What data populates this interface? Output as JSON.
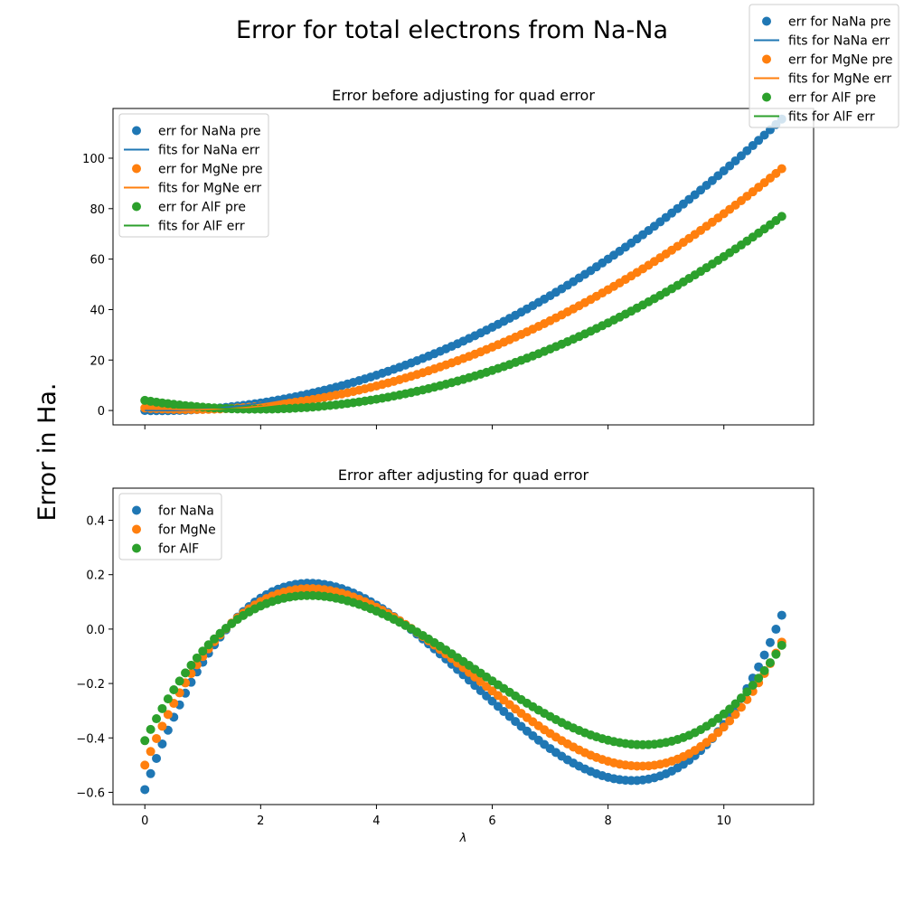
{
  "figure": {
    "suptitle": "Error for total electrons from Na-Na",
    "ylabel": "Error in Ha.",
    "xlabel": "λ",
    "figure_legend": [
      {
        "label": "err for NaNa pre",
        "kind": "marker",
        "color": "#1f77b4"
      },
      {
        "label": "fits for NaNa err",
        "kind": "line",
        "color": "#1f77b4"
      },
      {
        "label": "err for MgNe pre",
        "kind": "marker",
        "color": "#ff7f0e"
      },
      {
        "label": "fits for MgNe err",
        "kind": "line",
        "color": "#ff7f0e"
      },
      {
        "label": "err for AlF pre",
        "kind": "marker",
        "color": "#2ca02c"
      },
      {
        "label": "fits for AlF err",
        "kind": "line",
        "color": "#2ca02c"
      }
    ]
  },
  "chart_data": [
    {
      "type": "scatter",
      "title": "Error before adjusting for quad error",
      "xlabel": "",
      "ylabel": "",
      "xlim": [
        -0.55,
        11.55
      ],
      "ylim": [
        -5.7,
        119.7
      ],
      "xticks": [
        0,
        2,
        4,
        6,
        8,
        10
      ],
      "yticks": [
        0,
        20,
        40,
        60,
        80,
        100
      ],
      "show_xtick_labels": false,
      "legend_position": "upper-left",
      "x_range": [
        0,
        11
      ],
      "n_points": 111,
      "series": [
        {
          "name": "err for NaNa pre",
          "fit_name": "fits for NaNa err",
          "color": "#1f77b4",
          "kind": "quadratic",
          "coeffs": [
            0.0,
            -0.5,
            1.0
          ]
        },
        {
          "name": "err for MgNe pre",
          "fit_name": "fits for MgNe err",
          "color": "#ff7f0e",
          "kind": "quadratic",
          "coeffs": [
            1.0,
            -1.5,
            0.92
          ]
        },
        {
          "name": "err for AlF pre",
          "fit_name": "fits for AlF err",
          "color": "#2ca02c",
          "kind": "quadratic",
          "coeffs": [
            4.0,
            -3.6,
            0.93
          ]
        }
      ],
      "legend": [
        {
          "label": "err for NaNa pre",
          "kind": "marker",
          "color": "#1f77b4"
        },
        {
          "label": "fits for NaNa err",
          "kind": "line",
          "color": "#1f77b4"
        },
        {
          "label": "err for MgNe pre",
          "kind": "marker",
          "color": "#ff7f0e"
        },
        {
          "label": "fits for MgNe err",
          "kind": "line",
          "color": "#ff7f0e"
        },
        {
          "label": "err for AlF pre",
          "kind": "marker",
          "color": "#2ca02c"
        },
        {
          "label": "fits for AlF err",
          "kind": "line",
          "color": "#2ca02c"
        }
      ]
    },
    {
      "type": "scatter",
      "title": "Error after adjusting for quad error",
      "xlabel": "λ",
      "ylabel": "",
      "xlim": [
        -0.55,
        11.55
      ],
      "ylim": [
        -0.645,
        0.518
      ],
      "xticks": [
        0,
        2,
        4,
        6,
        8,
        10
      ],
      "yticks": [
        -0.6,
        -0.4,
        -0.2,
        0.0,
        0.2,
        0.4
      ],
      "show_xtick_labels": true,
      "legend_position": "upper-left",
      "x_range": [
        0,
        11
      ],
      "n_points": 111,
      "series": [
        {
          "name": "for NaNa",
          "color": "#1f77b4",
          "kind": "cubic",
          "coeffs": [
            -0.59,
            0.601,
            -0.1413,
            0.00836
          ]
        },
        {
          "name": "for MgNe",
          "color": "#ff7f0e",
          "kind": "cubic",
          "coeffs": [
            -0.5,
            0.512,
            -0.1197,
            0.00699
          ]
        },
        {
          "name": "for AlF",
          "color": "#2ca02c",
          "kind": "cubic",
          "coeffs": [
            -0.41,
            0.4218,
            -0.0987,
            0.00575
          ]
        }
      ],
      "legend": [
        {
          "label": "for NaNa",
          "kind": "marker",
          "color": "#1f77b4"
        },
        {
          "label": "for MgNe",
          "kind": "marker",
          "color": "#ff7f0e"
        },
        {
          "label": "for AlF",
          "kind": "marker",
          "color": "#2ca02c"
        }
      ]
    }
  ]
}
